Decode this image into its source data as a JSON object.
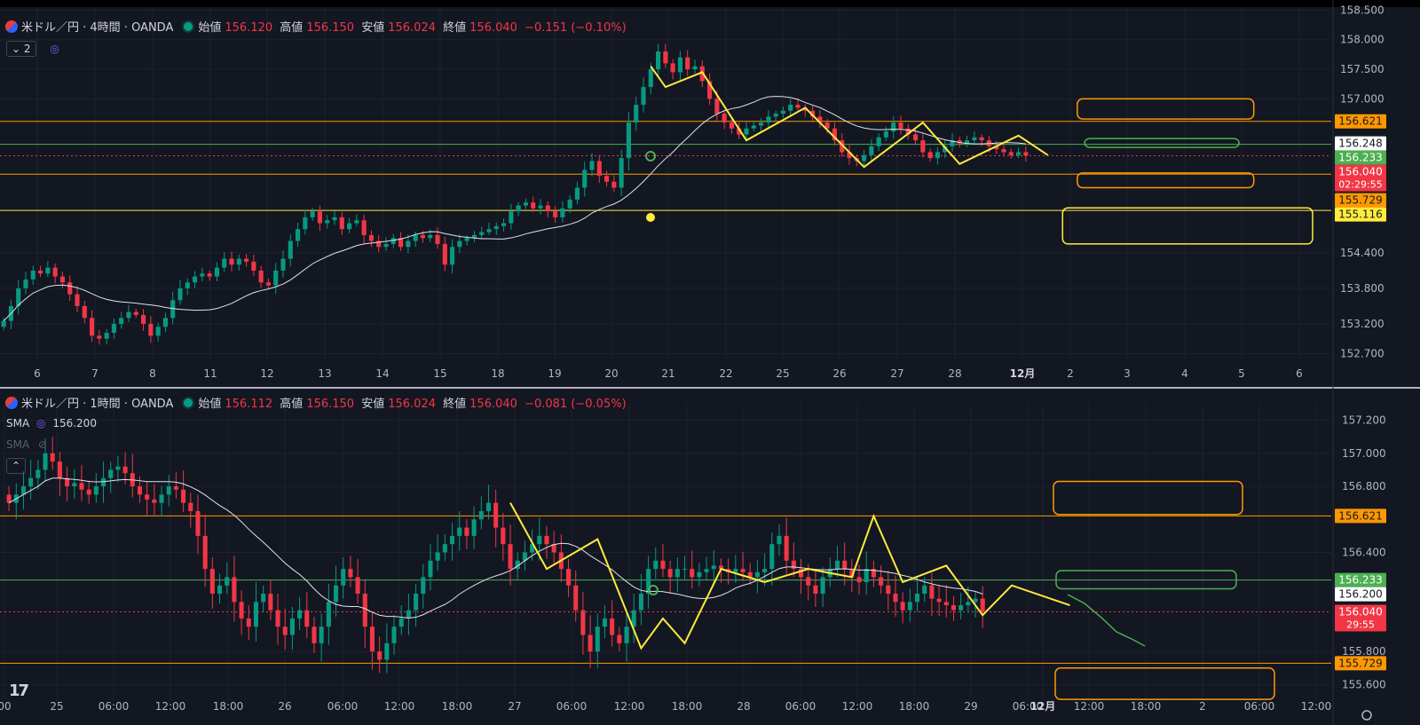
{
  "colors": {
    "bg": "#131722",
    "grid": "#1e222d",
    "up": "#089981",
    "down": "#f23645",
    "text": "#b2b5be",
    "sma": "#e0e3eb",
    "orange": "#ff9800",
    "yellow": "#ffeb3b",
    "green": "#4caf50",
    "divider": "#b2b5be"
  },
  "top_legend": {
    "symbol": "米ドル／円 · 4時間 · OANDA",
    "open_label": "始値",
    "open": "156.120",
    "high_label": "高値",
    "high": "156.150",
    "low_label": "安値",
    "low": "156.024",
    "close_label": "終値",
    "close": "156.040",
    "change": "−0.151 (−0.10%)",
    "layers": "2"
  },
  "bottom_legend": {
    "symbol": "米ドル／円 · 1時間 · OANDA",
    "open_label": "始値",
    "open": "156.112",
    "high_label": "高値",
    "high": "156.150",
    "low_label": "安値",
    "low": "156.024",
    "close_label": "終値",
    "close": "156.040",
    "change": "−0.081 (−0.05%)",
    "sma_label": "SMA",
    "sma_value": "156.200",
    "sma2_label": "SMA"
  },
  "chart_data": [
    {
      "type": "candlestick",
      "panel": "4時間",
      "yticks": [
        "158.500",
        "158.000",
        "157.500",
        "157.000",
        "154.400",
        "153.800",
        "153.200",
        "152.700"
      ],
      "xticks": [
        "6",
        "7",
        "8",
        "11",
        "12",
        "13",
        "14",
        "15",
        "18",
        "19",
        "20",
        "21",
        "22",
        "25",
        "26",
        "27",
        "28",
        "12月",
        "2",
        "3",
        "4",
        "5",
        "6"
      ],
      "price_labels": [
        {
          "text": "156.621",
          "price": 156.621,
          "kind": "orange"
        },
        {
          "text": "156.248",
          "price": 156.248,
          "kind": "white"
        },
        {
          "text": "156.233",
          "price": 156.233,
          "kind": "green"
        },
        {
          "text": "156.040",
          "price": 156.04,
          "kind": "red",
          "sub": "02:29:55"
        },
        {
          "text": "155.729",
          "price": 155.729,
          "kind": "orange"
        },
        {
          "text": "155.116",
          "price": 155.116,
          "kind": "yellow"
        }
      ],
      "hlines": [
        {
          "price": 156.621,
          "color": "#ff9800"
        },
        {
          "price": 156.233,
          "color": "#4caf50"
        },
        {
          "price": 156.04,
          "color": "#f23645",
          "dashed": true
        },
        {
          "price": 155.729,
          "color": "#ff9800"
        },
        {
          "price": 155.116,
          "color": "#ffeb3b"
        }
      ],
      "closes": [
        153.25,
        153.5,
        153.8,
        153.95,
        154.1,
        154.05,
        154.15,
        154.0,
        153.9,
        153.7,
        153.5,
        153.3,
        153.0,
        152.95,
        153.05,
        153.2,
        153.3,
        153.4,
        153.35,
        153.2,
        153.0,
        153.15,
        153.3,
        153.6,
        153.8,
        153.9,
        154.0,
        154.05,
        154.0,
        154.15,
        154.3,
        154.2,
        154.3,
        154.25,
        154.1,
        153.9,
        153.85,
        154.1,
        154.3,
        154.6,
        154.8,
        155.0,
        155.1,
        154.9,
        154.95,
        155.0,
        154.8,
        154.9,
        154.95,
        154.7,
        154.6,
        154.5,
        154.55,
        154.65,
        154.5,
        154.6,
        154.7,
        154.65,
        154.7,
        154.55,
        154.2,
        154.5,
        154.6,
        154.65,
        154.7,
        154.75,
        154.8,
        154.85,
        154.9,
        155.1,
        155.2,
        155.25,
        155.15,
        155.2,
        155.1,
        155.0,
        155.15,
        155.3,
        155.5,
        155.8,
        155.95,
        155.7,
        155.6,
        155.5,
        156.0,
        156.6,
        156.9,
        157.2,
        157.5,
        157.8,
        157.6,
        157.45,
        157.7,
        157.5,
        157.55,
        157.3,
        157.0,
        156.75,
        156.6,
        156.5,
        156.4,
        156.5,
        156.55,
        156.6,
        156.7,
        156.75,
        156.8,
        156.9,
        156.85,
        156.8,
        156.7,
        156.6,
        156.5,
        156.3,
        156.1,
        156.0,
        155.95,
        156.05,
        156.2,
        156.35,
        156.45,
        156.6,
        156.5,
        156.4,
        156.3,
        156.1,
        156.0,
        156.1,
        156.2,
        156.3,
        156.25,
        156.3,
        156.35,
        156.3,
        156.2,
        156.15,
        156.1,
        156.05,
        156.1,
        156.04
      ],
      "zigzag": [
        [
          88,
          157.55
        ],
        [
          90,
          157.2
        ],
        [
          95,
          157.45
        ],
        [
          101,
          156.3
        ],
        [
          109,
          156.85
        ],
        [
          117,
          155.85
        ],
        [
          125,
          156.6
        ],
        [
          130,
          155.9
        ],
        [
          138,
          156.38
        ],
        [
          142,
          156.05
        ]
      ],
      "boxes": [
        {
          "p1": 157.0,
          "p2": 156.66,
          "c0": 146,
          "c1": 170,
          "color": "#ff9800"
        },
        {
          "p1": 156.33,
          "p2": 156.18,
          "c0": 147,
          "c1": 168,
          "color": "#4caf50"
        },
        {
          "p1": 155.75,
          "p2": 155.5,
          "c0": 146,
          "c1": 170,
          "color": "#ff9800"
        },
        {
          "p1": 155.16,
          "p2": 154.55,
          "c0": 144,
          "c1": 178,
          "color": "#ffeb3b"
        }
      ]
    },
    {
      "type": "candlestick",
      "panel": "1時間",
      "yticks": [
        "157.200",
        "157.000",
        "156.800",
        "156.400",
        "155.800",
        "155.600"
      ],
      "xticks": [
        "00",
        "25",
        "06:00",
        "12:00",
        "18:00",
        "26",
        "06:00",
        "12:00",
        "18:00",
        "27",
        "06:00",
        "12:00",
        "18:00",
        "28",
        "06:00",
        "12:00",
        "18:00",
        "29",
        "06:00",
        "12月",
        "12:00",
        "18:00",
        "2",
        "06:00",
        "12:00"
      ],
      "price_labels": [
        {
          "text": "156.621",
          "price": 156.621,
          "kind": "orange"
        },
        {
          "text": "156.233",
          "price": 156.233,
          "kind": "green"
        },
        {
          "text": "156.200",
          "price": 156.2,
          "kind": "white"
        },
        {
          "text": "156.040",
          "price": 156.04,
          "kind": "red",
          "sub": "29:55"
        },
        {
          "text": "155.729",
          "price": 155.729,
          "kind": "orange"
        }
      ],
      "hlines": [
        {
          "price": 156.621,
          "color": "#ff9800"
        },
        {
          "price": 156.233,
          "color": "#4caf50"
        },
        {
          "price": 156.04,
          "color": "#f23645",
          "dashed": true
        },
        {
          "price": 155.729,
          "color": "#ff9800"
        }
      ],
      "closes": [
        156.7,
        156.75,
        156.8,
        156.85,
        156.9,
        157.0,
        156.95,
        156.85,
        156.8,
        156.82,
        156.78,
        156.75,
        156.8,
        156.85,
        156.9,
        156.92,
        156.88,
        156.8,
        156.75,
        156.72,
        156.7,
        156.75,
        156.8,
        156.78,
        156.7,
        156.65,
        156.5,
        156.3,
        156.15,
        156.2,
        156.25,
        156.1,
        156.0,
        155.95,
        156.1,
        156.15,
        156.05,
        155.95,
        155.9,
        156.0,
        156.05,
        155.95,
        155.85,
        155.95,
        156.1,
        156.2,
        156.3,
        156.25,
        156.15,
        155.95,
        155.8,
        155.75,
        155.85,
        155.95,
        156.0,
        156.05,
        156.15,
        156.25,
        156.35,
        156.4,
        156.45,
        156.5,
        156.55,
        156.5,
        156.6,
        156.65,
        156.7,
        156.55,
        156.45,
        156.3,
        156.35,
        156.4,
        156.45,
        156.5,
        156.45,
        156.4,
        156.3,
        156.2,
        156.05,
        155.9,
        155.8,
        155.95,
        156.0,
        155.9,
        155.85,
        155.95,
        156.05,
        156.15,
        156.3,
        156.35,
        156.3,
        156.25,
        156.3,
        156.3,
        156.25,
        156.28,
        156.3,
        156.32,
        156.3,
        156.28,
        156.3,
        156.28,
        156.25,
        156.28,
        156.3,
        156.45,
        156.5,
        156.35,
        156.3,
        156.25,
        156.2,
        156.15,
        156.25,
        156.3,
        156.35,
        156.3,
        156.25,
        156.22,
        156.3,
        156.25,
        156.2,
        156.15,
        156.1,
        156.05,
        156.1,
        156.15,
        156.2,
        156.12,
        156.1,
        156.08,
        156.05,
        156.08,
        156.1,
        156.12,
        156.04
      ],
      "zigzag": [
        [
          69,
          156.7
        ],
        [
          74,
          156.3
        ],
        [
          81,
          156.48
        ],
        [
          87,
          155.82
        ],
        [
          90,
          156.0
        ],
        [
          93,
          155.85
        ],
        [
          98,
          156.3
        ],
        [
          104,
          156.22
        ],
        [
          110,
          156.3
        ],
        [
          116,
          156.25
        ],
        [
          119,
          156.62
        ],
        [
          123,
          156.22
        ],
        [
          129,
          156.32
        ],
        [
          134,
          156.02
        ],
        [
          138,
          156.2
        ],
        [
          146,
          156.08
        ]
      ],
      "forecast": [
        [
          1203,
          670
        ],
        [
          1222,
          680
        ],
        [
          1240,
          695
        ],
        [
          1258,
          712
        ],
        [
          1275,
          720
        ],
        [
          1290,
          728
        ]
      ],
      "boxes": [
        {
          "p1": 156.83,
          "p2": 156.63,
          "c0": 1187,
          "c1": 1400,
          "color": "#ff9800"
        },
        {
          "p1": 156.29,
          "p2": 156.18,
          "c0": 1190,
          "c1": 1393,
          "color": "#4caf50"
        },
        {
          "p1": 155.7,
          "p2": 155.51,
          "c0": 1189,
          "c1": 1436,
          "color": "#ff9800"
        }
      ]
    }
  ]
}
